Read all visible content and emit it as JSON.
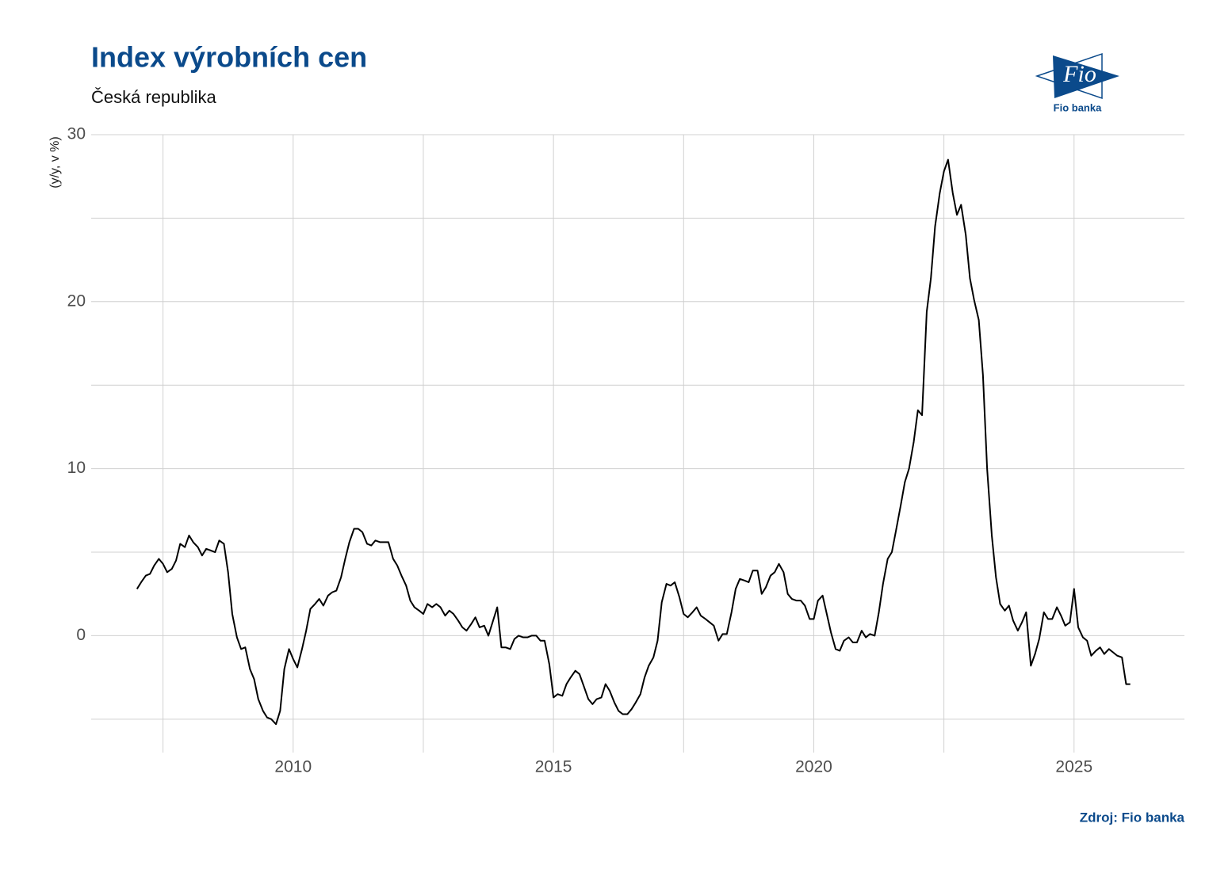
{
  "chart_data": {
    "type": "line",
    "title": "Index výrobních cen",
    "subtitle": "Česká republika",
    "y_label": "(y/y, v %)",
    "source": "Zdroj: Fio banka",
    "color": "#000000",
    "grid": true,
    "xlim": [
      2006.12,
      2027.12
    ],
    "xticks": [
      2010,
      2015,
      2020,
      2025
    ],
    "xminor": [
      2007.5,
      2012.5,
      2017.5,
      2022.5
    ],
    "ylim": [
      -7,
      30
    ],
    "yticks": [
      0,
      10,
      20,
      30
    ],
    "yminor": [
      -5,
      5,
      15,
      25
    ],
    "x": [
      2007.0,
      2007.08,
      2007.17,
      2007.25,
      2007.33,
      2007.42,
      2007.5,
      2007.58,
      2007.67,
      2007.75,
      2007.83,
      2007.92,
      2008.0,
      2008.08,
      2008.17,
      2008.25,
      2008.33,
      2008.42,
      2008.5,
      2008.58,
      2008.67,
      2008.75,
      2008.83,
      2008.92,
      2009.0,
      2009.08,
      2009.17,
      2009.25,
      2009.33,
      2009.42,
      2009.5,
      2009.58,
      2009.67,
      2009.75,
      2009.83,
      2009.92,
      2010.0,
      2010.08,
      2010.17,
      2010.25,
      2010.33,
      2010.42,
      2010.5,
      2010.58,
      2010.67,
      2010.75,
      2010.83,
      2010.92,
      2011.0,
      2011.08,
      2011.17,
      2011.25,
      2011.33,
      2011.42,
      2011.5,
      2011.58,
      2011.67,
      2011.75,
      2011.83,
      2011.92,
      2012.0,
      2012.08,
      2012.17,
      2012.25,
      2012.33,
      2012.42,
      2012.5,
      2012.58,
      2012.67,
      2012.75,
      2012.83,
      2012.92,
      2013.0,
      2013.08,
      2013.17,
      2013.25,
      2013.33,
      2013.42,
      2013.5,
      2013.58,
      2013.67,
      2013.75,
      2013.83,
      2013.92,
      2014.0,
      2014.08,
      2014.17,
      2014.25,
      2014.33,
      2014.42,
      2014.5,
      2014.58,
      2014.67,
      2014.75,
      2014.83,
      2014.92,
      2015.0,
      2015.08,
      2015.17,
      2015.25,
      2015.33,
      2015.42,
      2015.5,
      2015.58,
      2015.67,
      2015.75,
      2015.83,
      2015.92,
      2016.0,
      2016.08,
      2016.17,
      2016.25,
      2016.33,
      2016.42,
      2016.5,
      2016.58,
      2016.67,
      2016.75,
      2016.83,
      2016.92,
      2017.0,
      2017.08,
      2017.17,
      2017.25,
      2017.33,
      2017.42,
      2017.5,
      2017.58,
      2017.67,
      2017.75,
      2017.83,
      2017.92,
      2018.0,
      2018.08,
      2018.17,
      2018.25,
      2018.33,
      2018.42,
      2018.5,
      2018.58,
      2018.67,
      2018.75,
      2018.83,
      2018.92,
      2019.0,
      2019.08,
      2019.17,
      2019.25,
      2019.33,
      2019.42,
      2019.5,
      2019.58,
      2019.67,
      2019.75,
      2019.83,
      2019.92,
      2020.0,
      2020.08,
      2020.17,
      2020.25,
      2020.33,
      2020.42,
      2020.5,
      2020.58,
      2020.67,
      2020.75,
      2020.83,
      2020.92,
      2021.0,
      2021.08,
      2021.17,
      2021.25,
      2021.33,
      2021.42,
      2021.5,
      2021.58,
      2021.67,
      2021.75,
      2021.83,
      2021.92,
      2022.0,
      2022.08,
      2022.17,
      2022.25,
      2022.33,
      2022.42,
      2022.5,
      2022.58,
      2022.67,
      2022.75,
      2022.83,
      2022.92,
      2023.0,
      2023.08,
      2023.17,
      2023.25,
      2023.33,
      2023.42,
      2023.5,
      2023.58,
      2023.67,
      2023.75,
      2023.83,
      2023.92,
      2024.0,
      2024.08,
      2024.17,
      2024.25,
      2024.33,
      2024.42,
      2024.5,
      2024.58,
      2024.67,
      2024.75,
      2024.83,
      2024.92,
      2025.0,
      2025.08,
      2025.17,
      2025.25,
      2025.33,
      2025.42,
      2025.5,
      2025.58,
      2025.67,
      2025.75,
      2025.83,
      2025.92,
      2026.0,
      2026.08
    ],
    "values": [
      2.8,
      3.2,
      3.6,
      3.7,
      4.2,
      4.6,
      4.3,
      3.8,
      4.0,
      4.5,
      5.5,
      5.3,
      6.0,
      5.6,
      5.3,
      4.8,
      5.2,
      5.1,
      5.0,
      5.7,
      5.5,
      3.8,
      1.3,
      -0.1,
      -0.8,
      -0.7,
      -2.0,
      -2.6,
      -3.8,
      -4.5,
      -4.9,
      -5.0,
      -5.3,
      -4.5,
      -2.0,
      -0.8,
      -1.4,
      -1.9,
      -0.8,
      0.3,
      1.6,
      1.9,
      2.2,
      1.8,
      2.4,
      2.6,
      2.7,
      3.5,
      4.6,
      5.6,
      6.4,
      6.4,
      6.2,
      5.5,
      5.4,
      5.7,
      5.6,
      5.6,
      5.6,
      4.6,
      4.2,
      3.6,
      3.0,
      2.1,
      1.7,
      1.5,
      1.3,
      1.9,
      1.7,
      1.9,
      1.7,
      1.2,
      1.5,
      1.3,
      0.9,
      0.5,
      0.3,
      0.7,
      1.1,
      0.5,
      0.6,
      0.0,
      0.8,
      1.7,
      -0.7,
      -0.7,
      -0.8,
      -0.2,
      0.0,
      -0.1,
      -0.1,
      0.0,
      0.0,
      -0.3,
      -0.3,
      -1.7,
      -3.7,
      -3.5,
      -3.6,
      -2.9,
      -2.5,
      -2.1,
      -2.3,
      -3.0,
      -3.8,
      -4.1,
      -3.8,
      -3.7,
      -2.9,
      -3.3,
      -4.0,
      -4.5,
      -4.7,
      -4.7,
      -4.4,
      -4.0,
      -3.5,
      -2.5,
      -1.8,
      -1.3,
      -0.3,
      2.0,
      3.1,
      3.0,
      3.2,
      2.3,
      1.3,
      1.1,
      1.4,
      1.7,
      1.2,
      1.0,
      0.8,
      0.6,
      -0.3,
      0.1,
      0.1,
      1.4,
      2.8,
      3.4,
      3.3,
      3.2,
      3.9,
      3.9,
      2.5,
      2.9,
      3.6,
      3.8,
      4.3,
      3.8,
      2.5,
      2.2,
      2.1,
      2.1,
      1.8,
      1.0,
      1.0,
      2.1,
      2.4,
      1.3,
      0.2,
      -0.8,
      -0.9,
      -0.3,
      -0.1,
      -0.4,
      -0.4,
      0.3,
      -0.1,
      0.1,
      0.0,
      1.4,
      3.1,
      4.6,
      5.0,
      6.3,
      7.8,
      9.2,
      10.0,
      11.6,
      13.5,
      13.2,
      19.4,
      21.4,
      24.5,
      26.5,
      27.8,
      28.5,
      26.5,
      25.2,
      25.8,
      24.0,
      21.4,
      20.1,
      18.9,
      15.6,
      10.0,
      6.0,
      3.5,
      1.9,
      1.5,
      1.8,
      0.9,
      0.3,
      0.8,
      1.4,
      -1.8,
      -1.1,
      -0.2,
      1.4,
      1.0,
      1.0,
      1.7,
      1.2,
      0.6,
      0.8,
      2.8,
      0.5,
      -0.1,
      -0.3,
      -1.2,
      -0.9,
      -0.7,
      -1.1,
      -0.8,
      -1.0,
      -1.2,
      -1.3,
      -2.9,
      -2.9
    ]
  },
  "logo": {
    "mark": "Fio",
    "caption": "Fio banka"
  }
}
